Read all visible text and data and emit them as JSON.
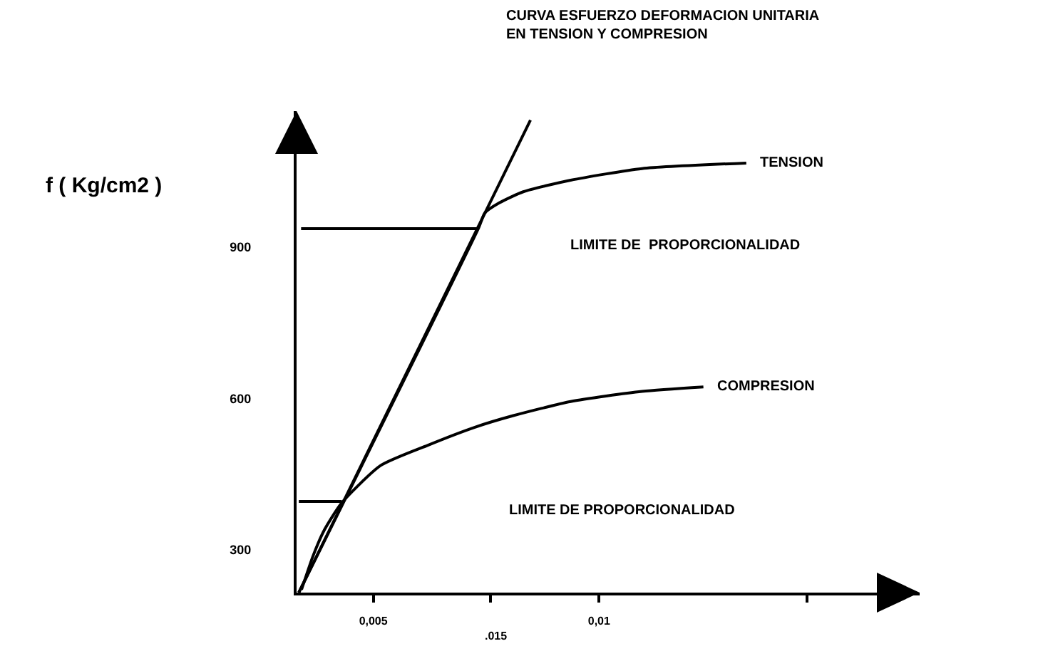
{
  "chart_data": {
    "type": "line",
    "title": "CURVA ESFUERZO DEFORMACION UNITARIA\nEN TENSION Y COMPRESION",
    "ylabel": "f ( Kg/cm2 )",
    "xlim": [
      0.0033,
      0.0171
    ],
    "ylim": [
      215,
      1170
    ],
    "xticks": [
      {
        "value": 0.005,
        "label": "0,005"
      },
      {
        "value": 0.0076,
        "label": null
      },
      {
        "value": 0.01,
        "label": "0,01"
      },
      {
        "value": 0.0146,
        "label": null
      }
    ],
    "yticks": [
      300,
      600,
      900
    ],
    "grid": false,
    "legend": false,
    "marker": "none",
    "line_style": "solid",
    "annotations": [
      "LIMITE DE  PROPORCIONALIDAD",
      "LIMITE DE PROPORCIONALIDAD",
      ".015"
    ],
    "series": [
      {
        "name": "TENSION",
        "color": "#000000",
        "x": [
          0.00335,
          0.00734,
          0.00747,
          0.00779,
          0.00832,
          0.00937,
          0.01095,
          0.01326
        ],
        "values": [
          215,
          940,
          968,
          988,
          1010,
          1033,
          1056,
          1067
        ]
      },
      {
        "name": "COMPRESION",
        "color": "#000000",
        "x": [
          0.00341,
          0.00367,
          0.00392,
          0.0043,
          0.00516,
          0.0062,
          0.00725,
          0.0081,
          0.00937,
          0.01095,
          0.01231
        ],
        "values": [
          221,
          289,
          340,
          393,
          467,
          507,
          543,
          566,
          594,
          614,
          623
        ]
      },
      {
        "color": "#000000",
        "x": [
          0.00335,
          0.00848
        ],
        "values": [
          215,
          1152
        ]
      },
      {
        "color": "#000000",
        "x": [
          0.0034,
          0.00734
        ],
        "values": [
          937,
          937
        ]
      },
      {
        "color": "#000000",
        "x": [
          0.00335,
          0.0043
        ],
        "values": [
          396,
          396
        ]
      }
    ]
  }
}
